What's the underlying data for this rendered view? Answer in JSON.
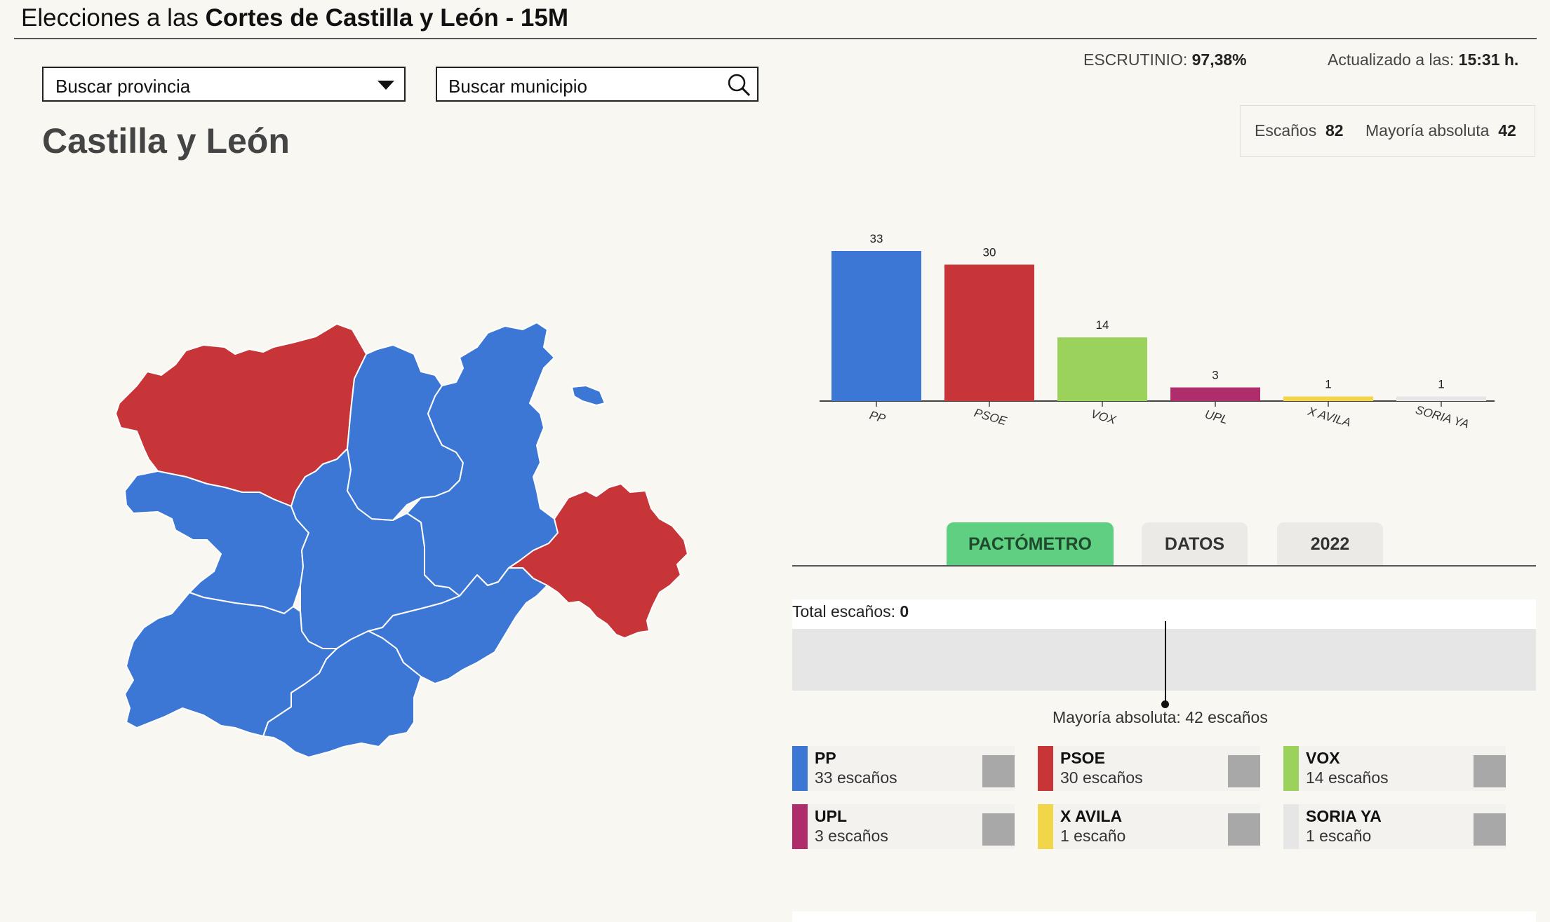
{
  "header": {
    "title_prefix": "Elecciones a las ",
    "title_bold": "Cortes de Castilla y León - 15M"
  },
  "filters": {
    "province_select": "Buscar provincia",
    "municipality_search": "Buscar municipio"
  },
  "region_title": "Castilla y León",
  "status": {
    "scrutiny_label": "ESCRUTINIO:",
    "scrutiny_value": "97,38%",
    "updated_label": "Actualizado a las:",
    "updated_value": "15:31 h."
  },
  "seats_info": {
    "seats_label": "Escaños",
    "seats_value": "82",
    "majority_label": "Mayoría absoluta",
    "majority_value": "42"
  },
  "colors": {
    "PP": "#3d77d6",
    "PSOE": "#c83538",
    "VOX": "#9bd25c",
    "UPL": "#b02d6b",
    "X AVILA": "#f2d64a",
    "SORIA YA": "#e6e6e6",
    "tab_active": "#5fcf82"
  },
  "chart_data": {
    "type": "bar",
    "categories": [
      "PP",
      "PSOE",
      "VOX",
      "UPL",
      "X AVILA",
      "SORIA YA"
    ],
    "values": [
      33,
      30,
      14,
      3,
      1,
      1
    ],
    "ylim": [
      0,
      33
    ]
  },
  "tabs": {
    "pactometro": "PACTÓMETRO",
    "datos": "DATOS",
    "y2022": "2022"
  },
  "pactometro": {
    "total_label": "Total escaños:",
    "total_value": "0",
    "majority_text": "Mayoría absoluta: 42 escaños"
  },
  "parties": [
    {
      "name": "PP",
      "seats": "33 escaños"
    },
    {
      "name": "PSOE",
      "seats": "30 escaños"
    },
    {
      "name": "VOX",
      "seats": "14 escaños"
    },
    {
      "name": "UPL",
      "seats": "3 escaños"
    },
    {
      "name": "X AVILA",
      "seats": "1 escaño"
    },
    {
      "name": "SORIA YA",
      "seats": "1 escaño"
    }
  ]
}
